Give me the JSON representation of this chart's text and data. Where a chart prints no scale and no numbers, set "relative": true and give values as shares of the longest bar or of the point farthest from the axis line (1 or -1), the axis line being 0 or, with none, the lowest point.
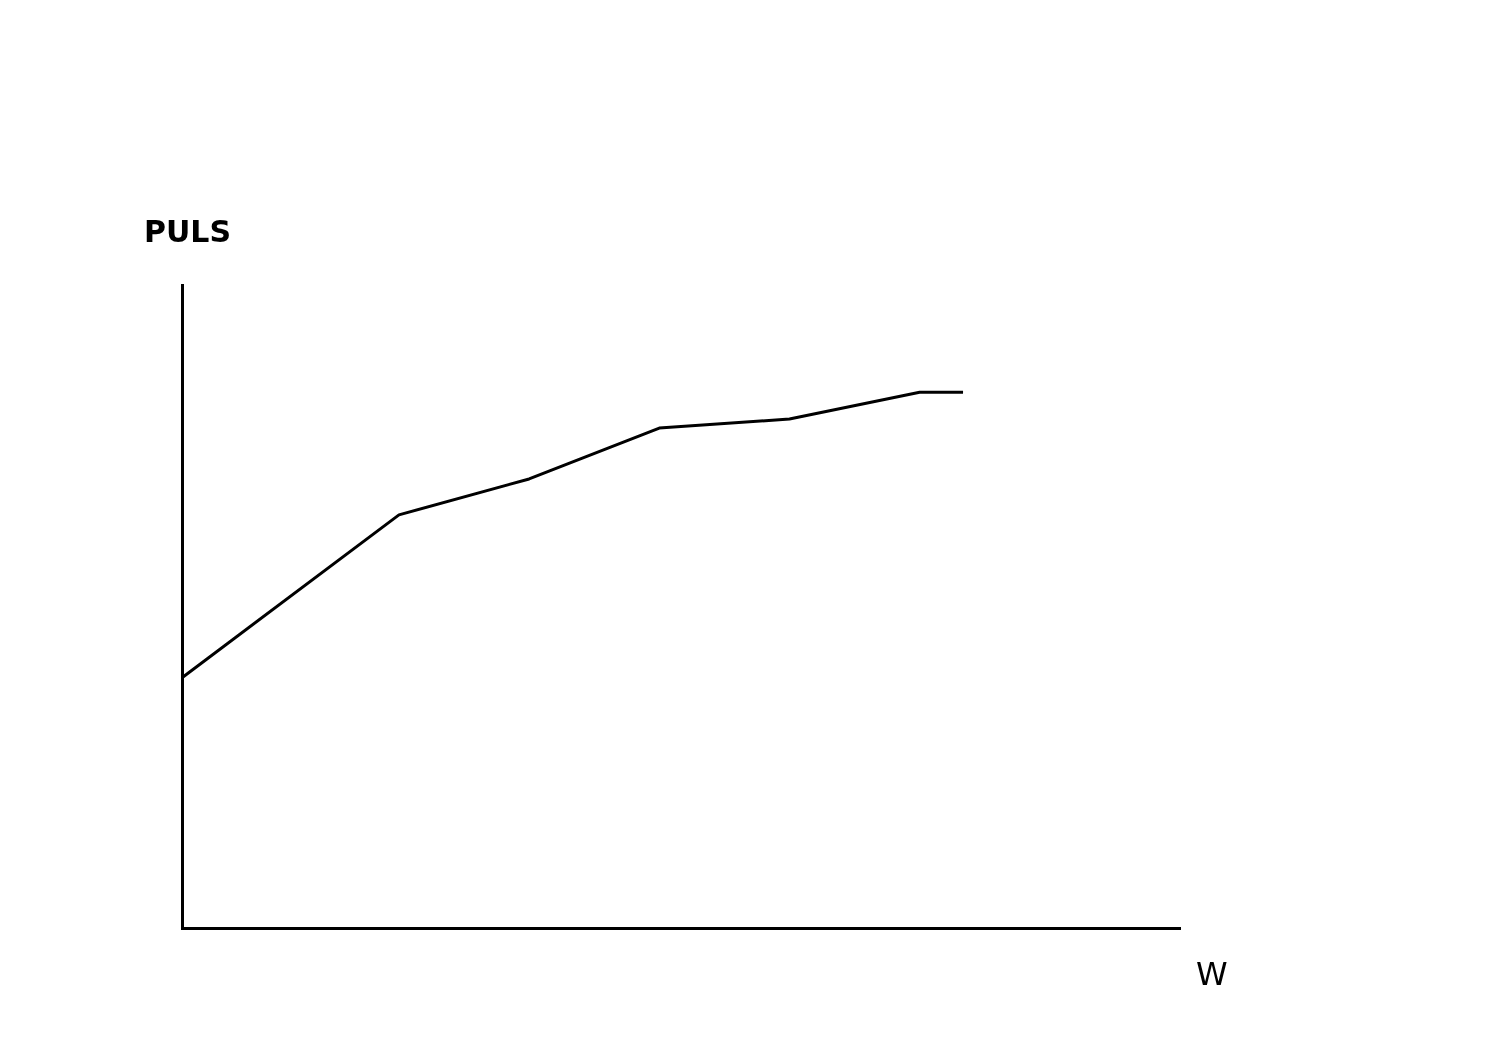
{
  "chart_data": {
    "type": "line",
    "relative": true,
    "xlabel": "W",
    "ylabel": "PULS",
    "categories": [
      null,
      null,
      null,
      null,
      null,
      null,
      null,
      null,
      null,
      null,
      null,
      null,
      null,
      null,
      null,
      null,
      null,
      null,
      null,
      null,
      null,
      null,
      null,
      null
    ],
    "values": [
      0.467,
      null,
      null,
      null,
      null,
      0.771,
      null,
      null,
      0.838,
      null,
      null,
      0.933,
      null,
      null,
      0.95,
      null,
      null,
      1,
      1,
      null,
      null,
      null,
      null,
      null
    ],
    "color": "#000000",
    "marker": "none"
  }
}
